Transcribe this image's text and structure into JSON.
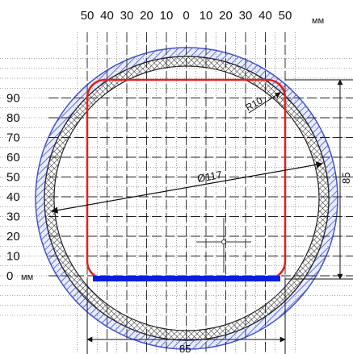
{
  "drawing": {
    "x_tick_labels": [
      "50",
      "40",
      "30",
      "20",
      "10",
      "0",
      "10",
      "20",
      "30",
      "40",
      "50"
    ],
    "x_unit": "мм",
    "y_tick_labels": [
      "90",
      "80",
      "70",
      "60",
      "50",
      "40",
      "30",
      "20",
      "10",
      "0"
    ],
    "y_unit": "мм",
    "diameter_label": "Ø117",
    "radius_label": "R10",
    "width_dimension_label": "85",
    "height_dimension_label": "85",
    "colors": {
      "grid": "#000000",
      "outer_hatch_ring": "#4455cc",
      "crosshatch_ring": "#222222",
      "rounded_square": "#e0201c",
      "base_bar": "#0a1ee0",
      "dimension_lines": "#111111"
    }
  }
}
